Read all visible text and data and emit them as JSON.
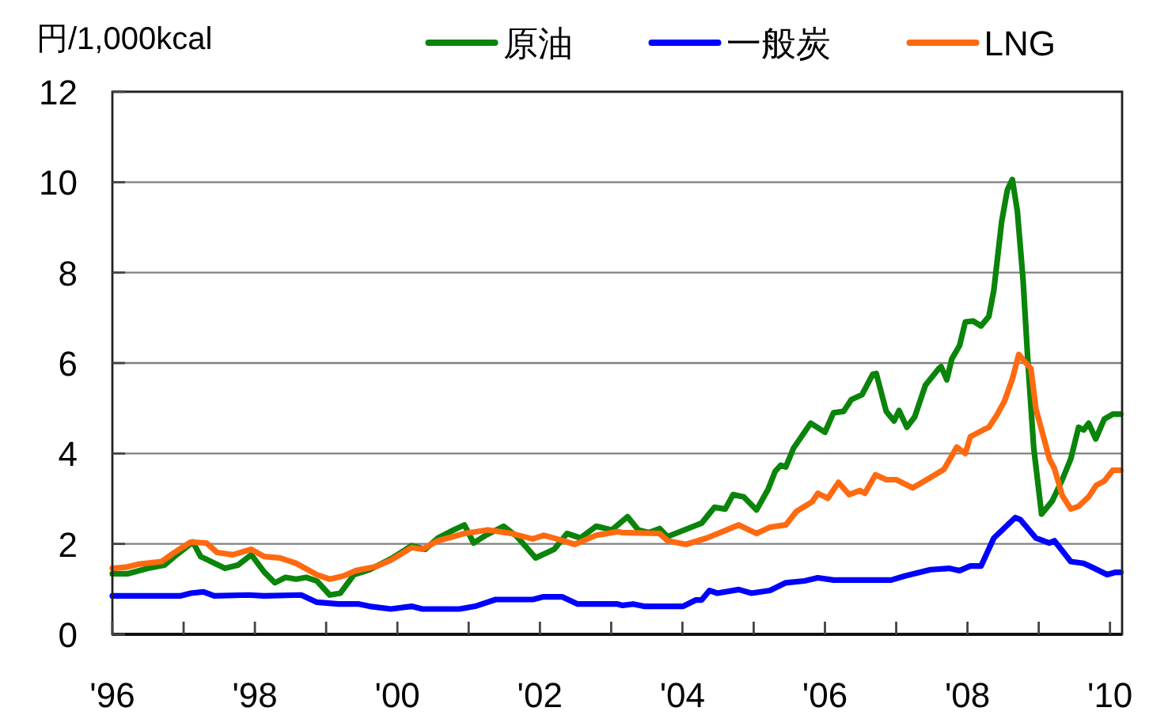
{
  "chart_data": {
    "type": "line",
    "ylabel": "円/1,000kcal",
    "xlim": [
      1996,
      2010.17
    ],
    "xticks": [
      {
        "value": 1996,
        "label": "'96"
      },
      {
        "value": 1997,
        "label": null
      },
      {
        "value": 1998,
        "label": "'98"
      },
      {
        "value": 1999,
        "label": null
      },
      {
        "value": 2000,
        "label": "'00"
      },
      {
        "value": 2001,
        "label": null
      },
      {
        "value": 2002,
        "label": "'02"
      },
      {
        "value": 2003,
        "label": null
      },
      {
        "value": 2004,
        "label": "'04"
      },
      {
        "value": 2005,
        "label": null
      },
      {
        "value": 2006,
        "label": "'06"
      },
      {
        "value": 2007,
        "label": null
      },
      {
        "value": 2008,
        "label": "'08"
      },
      {
        "value": 2009,
        "label": null
      },
      {
        "value": 2010,
        "label": "'10"
      }
    ],
    "ylim": [
      0,
      12
    ],
    "yticks": [
      0,
      2,
      4,
      6,
      8,
      10,
      12
    ],
    "grid": "y",
    "legend": "top right",
    "series": [
      {
        "name": "原油",
        "color": "#0a840a",
        "x": [
          1996.0,
          1996.21,
          1996.5,
          1996.73,
          1996.87,
          1997.13,
          1997.24,
          1997.58,
          1997.76,
          1997.95,
          1998.13,
          1998.28,
          1998.43,
          1998.58,
          1998.72,
          1998.87,
          1999.05,
          1999.2,
          1999.39,
          1999.61,
          1999.91,
          2000.2,
          2000.39,
          2000.57,
          2000.79,
          2000.94,
          2001.07,
          2001.24,
          2001.49,
          2001.68,
          2001.94,
          2002.2,
          2002.38,
          2002.57,
          2002.79,
          2003.01,
          2003.23,
          2003.38,
          2003.53,
          2003.68,
          2003.79,
          2004.27,
          2004.45,
          2004.6,
          2004.71,
          2004.86,
          2005.04,
          2005.2,
          2005.3,
          2005.38,
          2005.45,
          2005.56,
          2005.8,
          2006.0,
          2006.12,
          2006.26,
          2006.37,
          2006.52,
          2006.67,
          2006.72,
          2006.86,
          2006.97,
          2007.04,
          2007.15,
          2007.26,
          2007.41,
          2007.6,
          2007.63,
          2007.71,
          2007.78,
          2007.89,
          2007.97,
          2008.08,
          2008.19,
          2008.3,
          2008.37,
          2008.48,
          2008.56,
          2008.63,
          2008.7,
          2008.78,
          2008.85,
          2008.93,
          2009.04,
          2009.19,
          2009.33,
          2009.45,
          2009.56,
          2009.63,
          2009.7,
          2009.8,
          2009.92,
          2010.04,
          2010.15
        ],
        "values": [
          1.34,
          1.34,
          1.46,
          1.53,
          1.72,
          2.04,
          1.72,
          1.46,
          1.53,
          1.76,
          1.38,
          1.14,
          1.26,
          1.22,
          1.26,
          1.18,
          0.87,
          0.91,
          1.32,
          1.43,
          1.67,
          1.96,
          1.88,
          2.13,
          2.31,
          2.42,
          2.02,
          2.19,
          2.39,
          2.16,
          1.69,
          1.88,
          2.23,
          2.13,
          2.39,
          2.31,
          2.6,
          2.31,
          2.25,
          2.34,
          2.16,
          2.46,
          2.81,
          2.77,
          3.09,
          3.04,
          2.75,
          3.2,
          3.6,
          3.74,
          3.7,
          4.12,
          4.67,
          4.47,
          4.9,
          4.93,
          5.19,
          5.3,
          5.75,
          5.77,
          4.93,
          4.72,
          4.95,
          4.58,
          4.81,
          5.51,
          5.88,
          5.92,
          5.63,
          6.09,
          6.39,
          6.91,
          6.93,
          6.82,
          7.03,
          7.61,
          9.13,
          9.83,
          10.06,
          9.36,
          7.84,
          5.98,
          4.12,
          2.66,
          2.95,
          3.42,
          3.88,
          4.58,
          4.52,
          4.67,
          4.32,
          4.76,
          4.87,
          4.87
        ]
      },
      {
        "name": "一般炭",
        "color": "#0000ff",
        "x": [
          1996.0,
          1996.95,
          1997.1,
          1997.28,
          1997.43,
          1997.91,
          1998.13,
          1998.65,
          1998.87,
          1999.17,
          1999.46,
          1999.61,
          1999.91,
          2000.2,
          2000.35,
          2000.87,
          2001.09,
          2001.38,
          2001.9,
          2002.05,
          2002.31,
          2002.53,
          2003.09,
          2003.16,
          2003.31,
          2003.46,
          2004.01,
          2004.19,
          2004.27,
          2004.38,
          2004.49,
          2004.79,
          2004.97,
          2005.23,
          2005.45,
          2005.71,
          2005.9,
          2006.12,
          2006.93,
          2007.12,
          2007.48,
          2007.74,
          2007.89,
          2008.04,
          2008.19,
          2008.37,
          2008.67,
          2008.74,
          2008.96,
          2009.15,
          2009.22,
          2009.45,
          2009.63,
          2009.74,
          2009.96,
          2010.07,
          2010.15
        ],
        "values": [
          0.85,
          0.85,
          0.91,
          0.94,
          0.85,
          0.87,
          0.85,
          0.87,
          0.71,
          0.67,
          0.67,
          0.62,
          0.56,
          0.62,
          0.56,
          0.56,
          0.62,
          0.77,
          0.77,
          0.83,
          0.83,
          0.67,
          0.67,
          0.64,
          0.67,
          0.62,
          0.62,
          0.76,
          0.76,
          0.97,
          0.91,
          0.99,
          0.91,
          0.97,
          1.14,
          1.18,
          1.25,
          1.2,
          1.2,
          1.29,
          1.43,
          1.46,
          1.41,
          1.51,
          1.51,
          2.13,
          2.58,
          2.54,
          2.13,
          2.02,
          2.07,
          1.61,
          1.57,
          1.49,
          1.32,
          1.37,
          1.37
        ]
      },
      {
        "name": "LNG",
        "color": "#ff6a10",
        "x": [
          1996.0,
          1996.21,
          1996.36,
          1996.69,
          1996.87,
          1997.1,
          1997.32,
          1997.47,
          1997.69,
          1997.95,
          1998.13,
          1998.35,
          1998.58,
          1998.87,
          1999.05,
          1999.24,
          1999.42,
          1999.68,
          1999.91,
          2000.2,
          2000.35,
          2000.57,
          2000.94,
          2001.27,
          2001.6,
          2001.9,
          2002.05,
          2002.24,
          2002.49,
          2002.79,
          2003.09,
          2003.16,
          2003.68,
          2003.79,
          2004.05,
          2004.34,
          2004.53,
          2004.79,
          2005.04,
          2005.23,
          2005.45,
          2005.6,
          2005.82,
          2005.9,
          2006.04,
          2006.19,
          2006.34,
          2006.49,
          2006.56,
          2006.71,
          2006.86,
          2007.0,
          2007.23,
          2007.45,
          2007.67,
          2007.85,
          2007.97,
          2008.04,
          2008.22,
          2008.3,
          2008.41,
          2008.52,
          2008.63,
          2008.72,
          2008.82,
          2008.89,
          2008.96,
          2009.07,
          2009.15,
          2009.22,
          2009.33,
          2009.45,
          2009.56,
          2009.7,
          2009.81,
          2009.92,
          2010.04,
          2010.15
        ],
        "values": [
          1.46,
          1.49,
          1.55,
          1.61,
          1.81,
          2.04,
          2.02,
          1.81,
          1.76,
          1.88,
          1.72,
          1.69,
          1.57,
          1.32,
          1.22,
          1.29,
          1.41,
          1.49,
          1.64,
          1.92,
          1.88,
          2.07,
          2.23,
          2.31,
          2.23,
          2.11,
          2.19,
          2.11,
          1.99,
          2.19,
          2.27,
          2.25,
          2.23,
          2.07,
          1.99,
          2.13,
          2.25,
          2.42,
          2.23,
          2.37,
          2.42,
          2.72,
          2.93,
          3.12,
          3.01,
          3.36,
          3.09,
          3.18,
          3.12,
          3.53,
          3.42,
          3.42,
          3.24,
          3.44,
          3.65,
          4.14,
          4.0,
          4.37,
          4.52,
          4.58,
          4.84,
          5.16,
          5.65,
          6.19,
          6.0,
          5.88,
          4.99,
          4.35,
          3.88,
          3.67,
          3.07,
          2.77,
          2.83,
          3.04,
          3.3,
          3.39,
          3.63,
          3.63
        ]
      }
    ]
  }
}
